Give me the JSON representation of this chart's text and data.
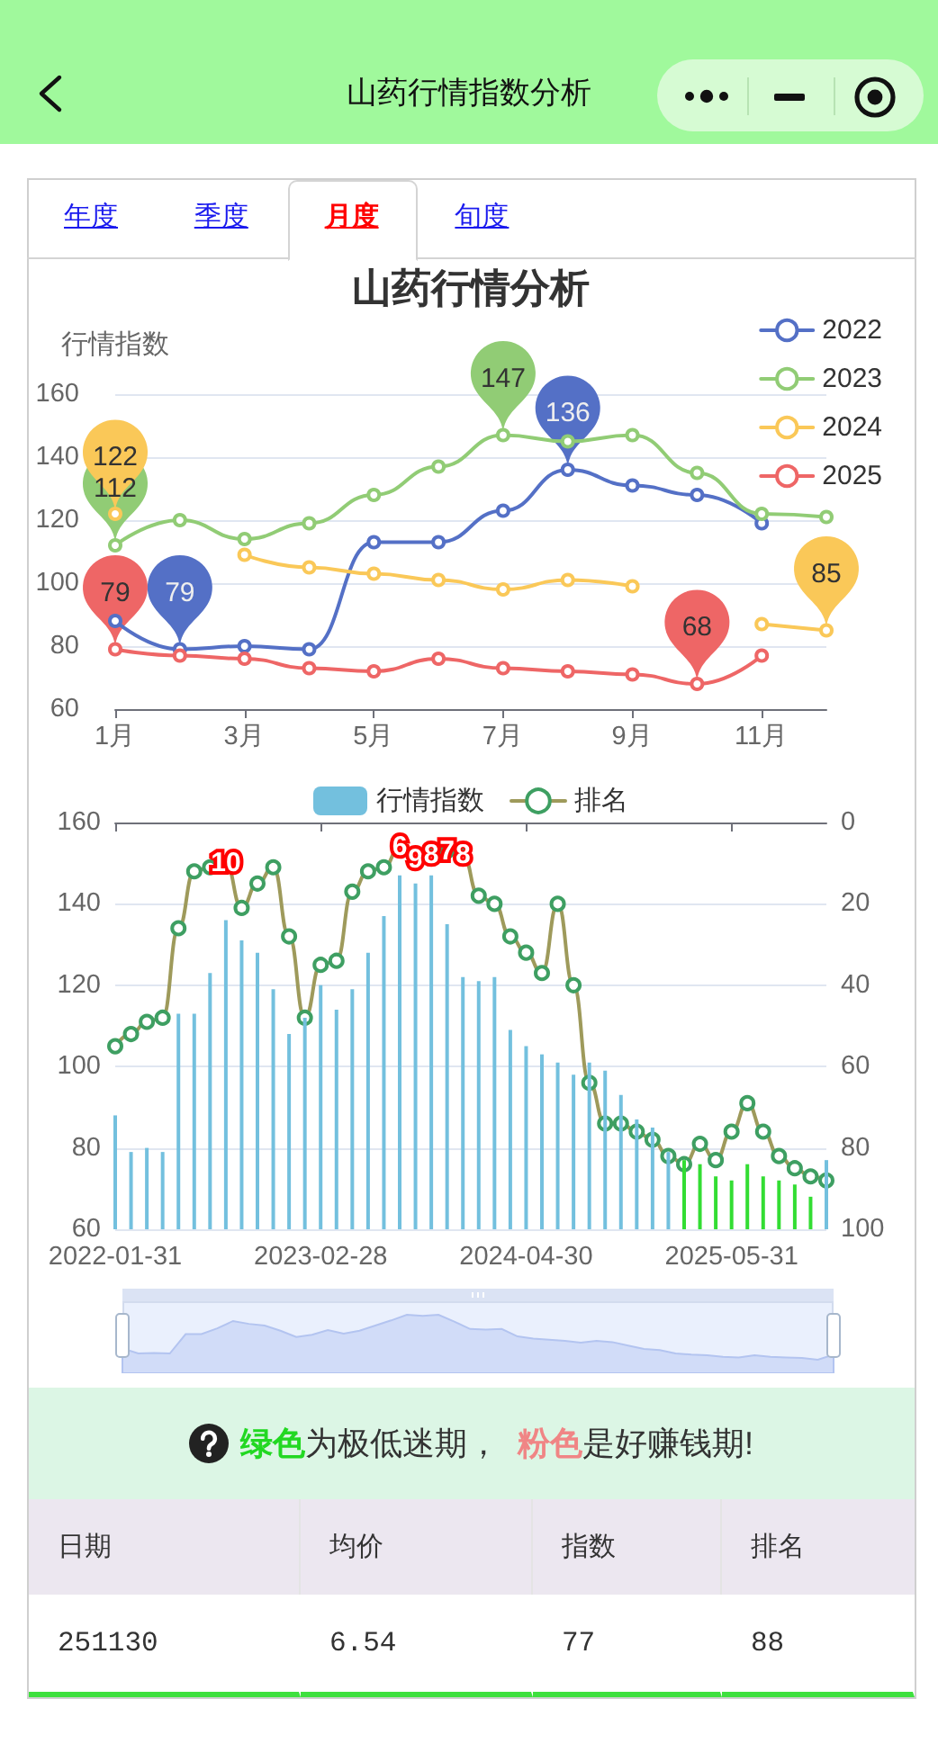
{
  "chart_data": [
    {
      "type": "other",
      "title": "山药行情指数分析",
      "categories": [
        "年度",
        "季度",
        "月度",
        "旬度"
      ],
      "colors": [
        "#1a1aee",
        "#1a1aee",
        "#ff0000",
        "#1a1aee"
      ]
    },
    {
      "type": "line",
      "title": "山药行情分析",
      "ylabel": "行情指数",
      "categories": [
        "1月",
        null,
        "3月",
        null,
        "5月",
        null,
        "7月",
        null,
        "9月",
        null,
        "11月",
        null
      ],
      "series": [
        {
          "name": "2022",
          "color": "#5470c6",
          "values": [
            88,
            79,
            80,
            79,
            113,
            113,
            123,
            136,
            131,
            128,
            119,
            null
          ],
          "value_labels": [
            null,
            "79",
            null,
            null,
            null,
            null,
            null,
            "136",
            null,
            null,
            null,
            null
          ]
        },
        {
          "name": "2023",
          "color": "#91cc75",
          "values": [
            112,
            120,
            114,
            119,
            128,
            137,
            147,
            145,
            147,
            135,
            122,
            121
          ],
          "value_labels": [
            "112",
            null,
            null,
            null,
            null,
            null,
            "147",
            null,
            null,
            null,
            null,
            null
          ]
        },
        {
          "name": "2024",
          "color": "#fac858",
          "values": [
            122,
            null,
            109,
            105,
            103,
            101,
            98,
            101,
            99,
            null,
            87,
            85
          ],
          "value_labels": [
            "122",
            null,
            null,
            null,
            null,
            null,
            null,
            null,
            null,
            null,
            null,
            "85"
          ]
        },
        {
          "name": "2025",
          "color": "#ee6666",
          "values": [
            79,
            77,
            76,
            73,
            72,
            76,
            73,
            72,
            71,
            68,
            77,
            null
          ],
          "value_labels": [
            "79",
            null,
            null,
            null,
            null,
            null,
            null,
            null,
            null,
            "68",
            null,
            null
          ]
        }
      ],
      "ylim": [
        60,
        160
      ],
      "yticks": [
        60,
        80,
        100,
        120,
        140,
        160
      ],
      "grid": "y",
      "legend": "top right",
      "marker": "circle"
    },
    {
      "type": "bar",
      "categories": [
        "2022-01-31",
        null,
        null,
        null,
        null,
        null,
        null,
        null,
        null,
        null,
        null,
        null,
        null,
        "2023-02-28",
        null,
        null,
        null,
        null,
        null,
        null,
        null,
        null,
        null,
        null,
        null,
        null,
        "2024-04-30",
        null,
        null,
        null,
        null,
        null,
        null,
        null,
        null,
        null,
        null,
        null,
        null,
        "2025-05-31",
        null,
        null,
        null,
        null,
        null,
        null
      ],
      "series": [
        {
          "name": "行情指数",
          "type": "bar",
          "color": "#73c0de",
          "colors": [
            "#73c0de",
            "#73c0de",
            "#73c0de",
            "#73c0de",
            "#73c0de",
            "#73c0de",
            "#73c0de",
            "#73c0de",
            "#73c0de",
            "#73c0de",
            "#73c0de",
            "#73c0de",
            "#73c0de",
            "#73c0de",
            "#73c0de",
            "#73c0de",
            "#73c0de",
            "#73c0de",
            "#73c0de",
            "#73c0de",
            "#73c0de",
            "#73c0de",
            "#73c0de",
            "#73c0de",
            "#73c0de",
            "#73c0de",
            "#73c0de",
            "#73c0de",
            "#73c0de",
            "#73c0de",
            "#73c0de",
            "#73c0de",
            "#73c0de",
            "#73c0de",
            "#73c0de",
            "#73c0de",
            "#33dd33",
            "#33dd33",
            "#33dd33",
            "#33dd33",
            "#33dd33",
            "#33dd33",
            "#33dd33",
            "#33dd33",
            "#33dd33",
            "#73c0de"
          ],
          "values": [
            88,
            79,
            80,
            79,
            113,
            113,
            123,
            136,
            131,
            128,
            119,
            108,
            112,
            120,
            114,
            119,
            128,
            137,
            147,
            145,
            147,
            135,
            122,
            121,
            122,
            109,
            105,
            103,
            101,
            98,
            101,
            99,
            93,
            87,
            85,
            79,
            77,
            76,
            73,
            72,
            76,
            73,
            72,
            71,
            68,
            77
          ]
        },
        {
          "name": "排名",
          "type": "line",
          "axis": "y2",
          "color": "#9e9a5b",
          "values": [
            55,
            52,
            49,
            48,
            26,
            12,
            11,
            10,
            21,
            15,
            11,
            28,
            48,
            35,
            34,
            17,
            12,
            11,
            6,
            9,
            8,
            7,
            8,
            18,
            20,
            28,
            32,
            37,
            20,
            40,
            64,
            74,
            74,
            76,
            78,
            82,
            84,
            79,
            83,
            76,
            69,
            76,
            82,
            85,
            87,
            88
          ],
          "value_labels": [
            null,
            null,
            null,
            null,
            null,
            null,
            null,
            "10",
            null,
            null,
            null,
            null,
            null,
            null,
            null,
            null,
            null,
            null,
            "6",
            "9",
            "8",
            "7",
            "8",
            null,
            null,
            null,
            null,
            null,
            null,
            null,
            null,
            null,
            null,
            null,
            null,
            null,
            null,
            null,
            null,
            null,
            null,
            null,
            null,
            null,
            null,
            null
          ]
        }
      ],
      "ylim": [
        60,
        160
      ],
      "yticks": [
        60,
        80,
        100,
        120,
        140,
        160
      ],
      "y2lim": [
        100,
        0
      ],
      "y2ticks": [
        0,
        20,
        40,
        60,
        80,
        100
      ],
      "grid": "y",
      "legend": "top",
      "marker": "circle"
    },
    {
      "type": "other",
      "annotations": [
        "绿色",
        "为极低迷期，",
        "粉色",
        "是好赚钱期!"
      ],
      "categories": [
        "日期",
        "均价",
        "指数",
        "排名"
      ],
      "values": [
        251130,
        6.54,
        77,
        88
      ],
      "data_labels": true
    }
  ]
}
